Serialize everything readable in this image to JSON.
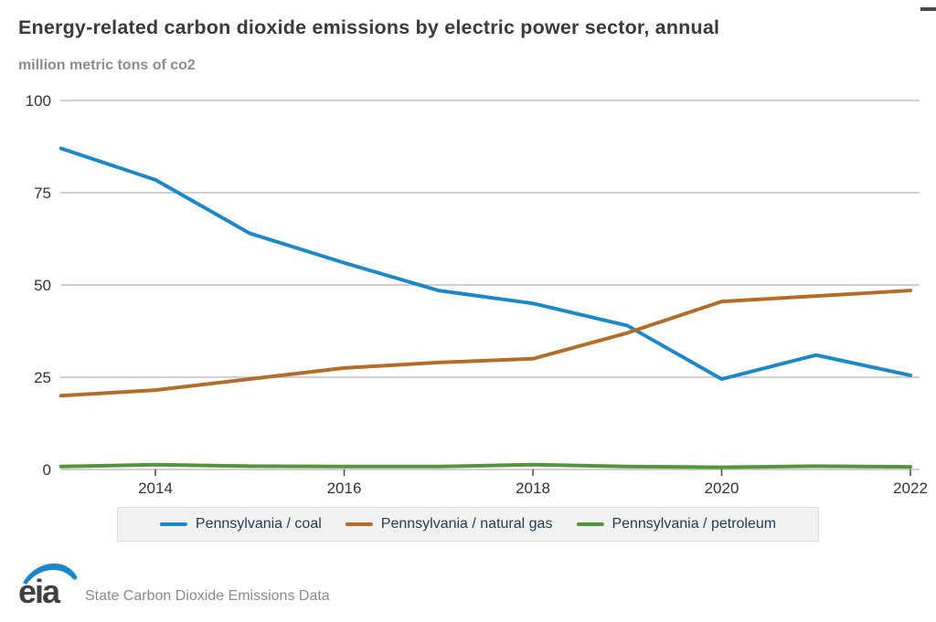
{
  "header": {
    "title": "Energy-related carbon dioxide emissions by electric power sector, annual",
    "unit_label": "million metric tons of co2"
  },
  "chart_data": {
    "type": "line",
    "title": "Energy-related carbon dioxide emissions by electric power sector, annual",
    "ylabel": "million metric tons of co2",
    "x": [
      2013,
      2014,
      2015,
      2016,
      2017,
      2018,
      2019,
      2020,
      2021,
      2022
    ],
    "series": [
      {
        "name": "Pennsylvania / coal",
        "color": "#1e88c7",
        "values": [
          87,
          78.5,
          64,
          56,
          48.5,
          45,
          39,
          24.5,
          31,
          25.5
        ]
      },
      {
        "name": "Pennsylvania / natural gas",
        "color": "#b06e2a",
        "values": [
          20,
          21.5,
          24.5,
          27.5,
          29,
          30,
          37,
          45.5,
          47,
          48.5
        ]
      },
      {
        "name": "Pennsylvania / petroleum",
        "color": "#55943a",
        "values": [
          0.8,
          1.3,
          0.9,
          0.8,
          0.8,
          1.3,
          0.8,
          0.6,
          0.9,
          0.7
        ]
      }
    ],
    "yticks": [
      0,
      25,
      50,
      75,
      100
    ],
    "xticks": [
      2014,
      2016,
      2018,
      2020,
      2022
    ],
    "ylim": [
      0,
      100
    ],
    "xlim": [
      2013,
      2022
    ],
    "grid": true,
    "legend_position": "bottom"
  },
  "legend": {
    "items": [
      {
        "label": "Pennsylvania / coal",
        "color": "#1e88c7"
      },
      {
        "label": "Pennsylvania / natural gas",
        "color": "#b06e2a"
      },
      {
        "label": "Pennsylvania / petroleum",
        "color": "#55943a"
      }
    ]
  },
  "footer": {
    "logo_text": "eia",
    "source": "State Carbon Dioxide Emissions Data"
  },
  "colors": {
    "title": "#3b3b3b",
    "subtitle": "#8c8c8c",
    "axis_text": "#333333",
    "gridline": "#c9c9c9",
    "tick": "#444444",
    "legend_text": "#1f3d58",
    "legend_bg": "#f1f1ef",
    "footer_text": "#8a8a8a",
    "logo_blue": "#1d86c8",
    "logo_gray": "#404040"
  }
}
